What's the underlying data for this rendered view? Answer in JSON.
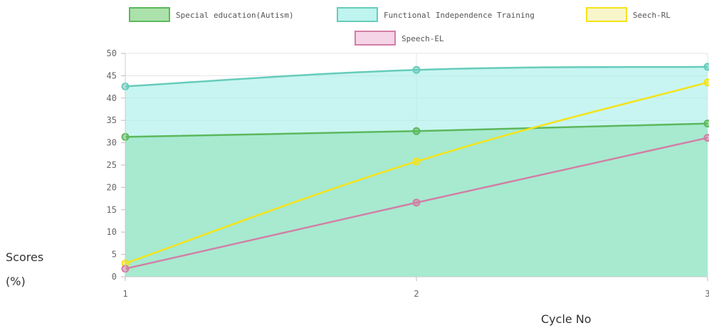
{
  "chart_data": {
    "type": "area",
    "x": [
      1,
      2,
      3
    ],
    "categories": [
      "1",
      "2",
      "3"
    ],
    "ylim": [
      0,
      50
    ],
    "yticks": [
      0,
      5,
      10,
      15,
      20,
      25,
      30,
      35,
      40,
      45,
      50
    ],
    "grid": true,
    "legend_position": "top",
    "xlabel": "Cycle No",
    "ylabel_lines": [
      "Scores",
      "(%)"
    ],
    "series": [
      {
        "name": "Special education(Autism)",
        "values": [
          31.3,
          32.6,
          34.3
        ],
        "color": "#5cb85c",
        "fill": "#8fd88f",
        "filled": true
      },
      {
        "name": "Functional Independence Training",
        "values": [
          42.6,
          46.3,
          47.0
        ],
        "color": "#66ccbb",
        "fill": "#aaf0ea",
        "filled": true
      },
      {
        "name": "Seech-RL",
        "values": [
          3.0,
          25.8,
          43.5
        ],
        "color": "#f5e31a",
        "fill": "#ffffff",
        "filled": false
      },
      {
        "name": "Speech-EL",
        "values": [
          1.8,
          16.6,
          31.1
        ],
        "color": "#d27fa5",
        "fill": "#f2c6df",
        "filled": false
      }
    ]
  }
}
